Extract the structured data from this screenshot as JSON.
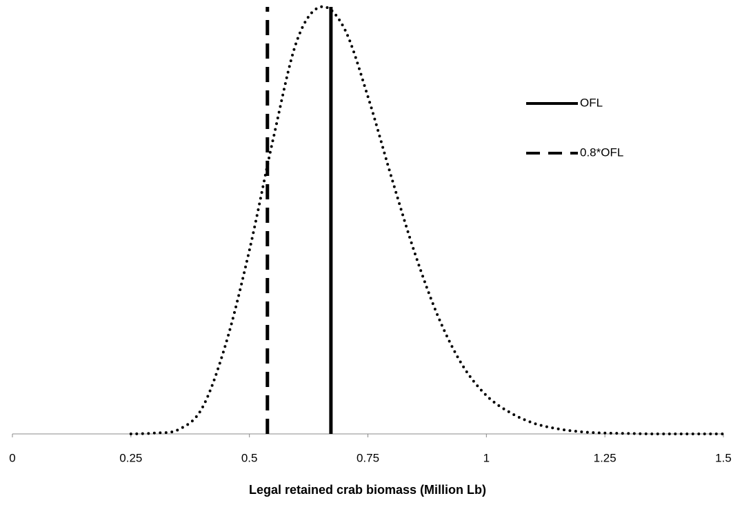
{
  "chart_data": {
    "type": "line",
    "x_label": "Legal retained crab biomass (Million Lb)",
    "x": [
      0.25,
      0.3,
      0.35,
      0.4,
      0.45,
      0.5,
      0.55,
      0.6,
      0.65,
      0.7,
      0.75,
      0.8,
      0.85,
      0.9,
      0.95,
      1.0,
      1.05,
      1.1,
      1.15,
      1.2,
      1.25,
      1.3,
      1.35,
      1.4,
      1.45,
      1.5
    ],
    "series": [
      {
        "color": "#000000",
        "values": [
          0,
          0.002,
          0.01,
          0.06,
          0.21,
          0.43,
          0.69,
          0.92,
          1.0,
          0.95,
          0.79,
          0.6,
          0.42,
          0.27,
          0.16,
          0.09,
          0.05,
          0.025,
          0.012,
          0.005,
          0.002,
          0.001,
          0,
          0,
          0,
          0
        ]
      }
    ],
    "vlines": [
      {
        "name": "OFL",
        "x": 0.672,
        "dashed": false,
        "color": "#000000"
      },
      {
        "name": "0.8*OFL",
        "x": 0.538,
        "dashed": true,
        "color": "#000000"
      }
    ],
    "xlim": [
      0,
      1.5
    ],
    "xticks": [
      0,
      0.25,
      0.5,
      0.75,
      1,
      1.25,
      1.5
    ],
    "ylim": [
      0,
      1
    ]
  }
}
